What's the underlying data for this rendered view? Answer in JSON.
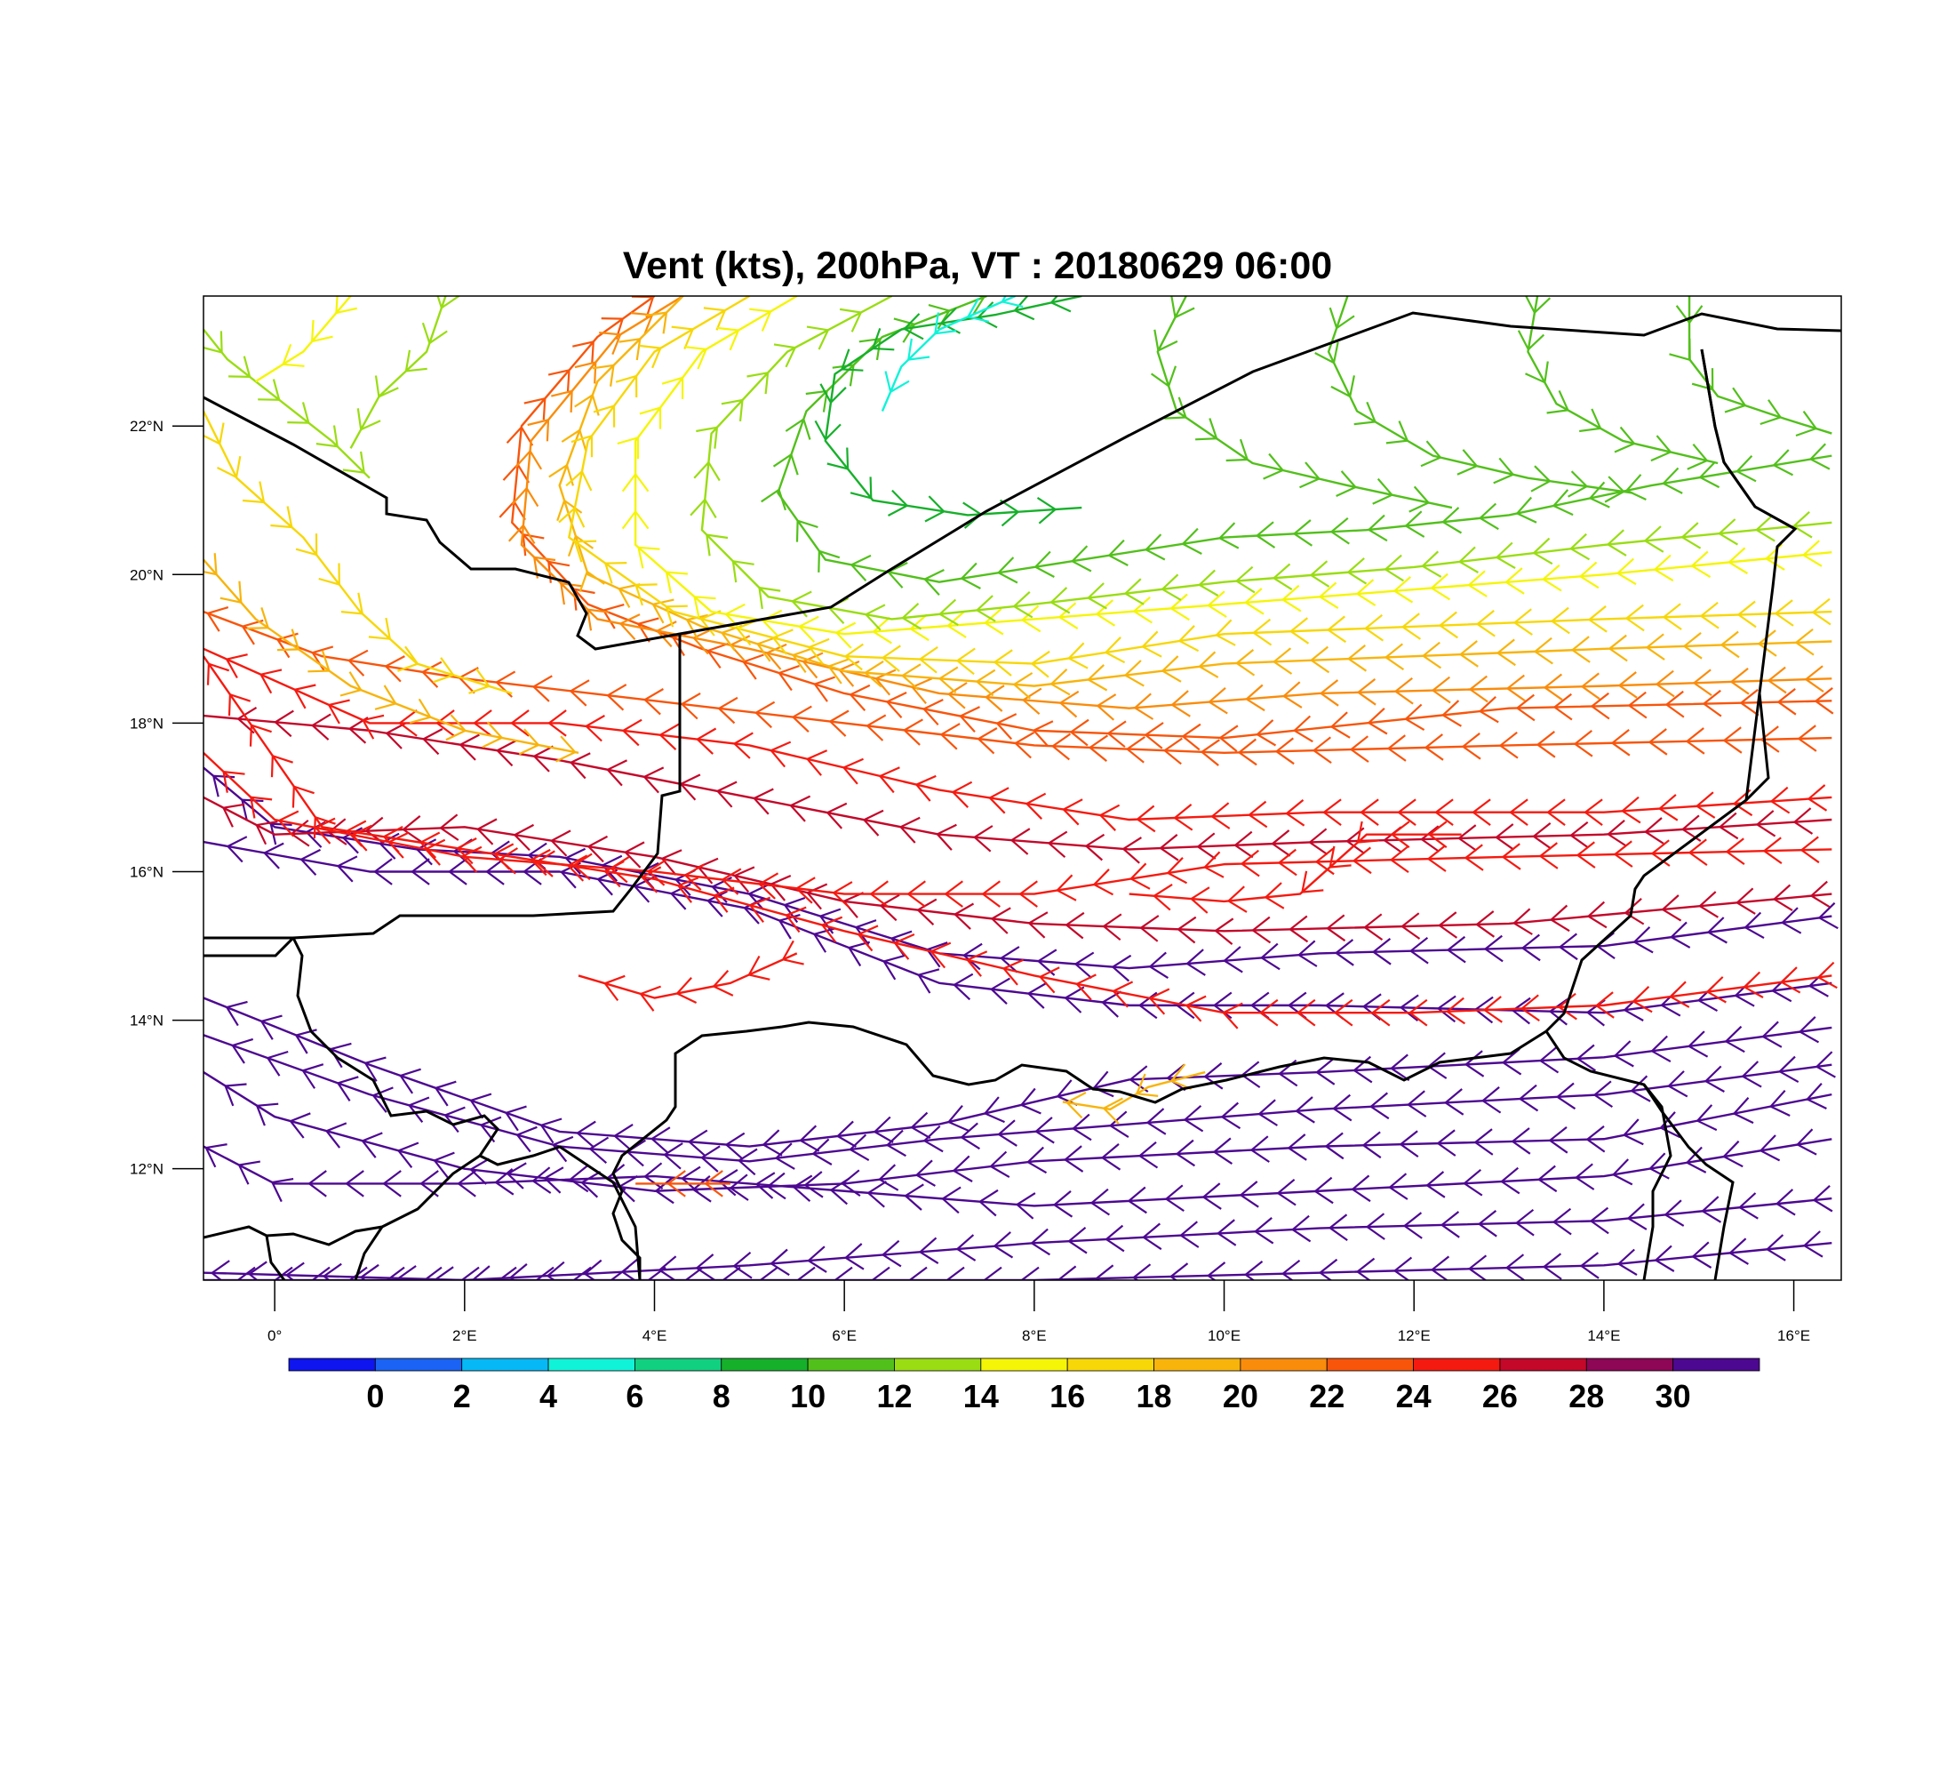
{
  "title": "Vent (kts), 200hPa, VT : 20180629  06:00",
  "map": {
    "lon_range": [
      -0.75,
      16.5
    ],
    "lat_range": [
      10.5,
      23.75
    ],
    "lat_ticks": [
      "22°N",
      "20°N",
      "18°N",
      "16°N",
      "14°N",
      "12°N"
    ],
    "lon_ticks": [
      "0°",
      "2°E",
      "4°E",
      "6°E",
      "8°E",
      "10°E",
      "12°E",
      "14°E",
      "16°E"
    ]
  },
  "colorbar": {
    "labels": [
      "0",
      "2",
      "4",
      "6",
      "8",
      "10",
      "12",
      "14",
      "16",
      "18",
      "20",
      "22",
      "24",
      "26",
      "28",
      "30"
    ],
    "colors": [
      "#0f15ee",
      "#1a63f4",
      "#06b9f6",
      "#10f3d8",
      "#11d080",
      "#16b02b",
      "#52c01b",
      "#99dd12",
      "#f5f507",
      "#f7d707",
      "#f8b40b",
      "#fa8c0b",
      "#f8550b",
      "#f51a10",
      "#c3082a",
      "#8e0656",
      "#4d0891"
    ]
  },
  "streamlines": [
    {
      "points": [
        [
          16.4,
          15.4
        ],
        [
          14,
          15
        ],
        [
          11,
          14.9
        ],
        [
          9,
          14.7
        ],
        [
          7,
          14.9
        ],
        [
          5,
          15.7
        ],
        [
          3,
          16.2
        ],
        [
          1.5,
          16.3
        ],
        [
          0,
          16.6
        ],
        [
          -0.75,
          17.4
        ]
      ],
      "color": "#4d0891"
    },
    {
      "points": [
        [
          16.4,
          14.5
        ],
        [
          14,
          14.1
        ],
        [
          11,
          14.2
        ],
        [
          9,
          14.2
        ],
        [
          7,
          14.5
        ],
        [
          5,
          15.5
        ],
        [
          3,
          16
        ],
        [
          1,
          16
        ],
        [
          -0.75,
          16.4
        ]
      ],
      "color": "#4d0891"
    },
    {
      "points": [
        [
          16.4,
          13.9
        ],
        [
          14,
          13.5
        ],
        [
          11,
          13.3
        ],
        [
          9,
          13.2
        ],
        [
          7,
          12.6
        ],
        [
          5,
          12.3
        ],
        [
          3,
          12.5
        ],
        [
          1,
          13.4
        ],
        [
          -0.75,
          14.3
        ]
      ],
      "color": "#4d0891"
    },
    {
      "points": [
        [
          16.4,
          13.4
        ],
        [
          14,
          13
        ],
        [
          11,
          12.8
        ],
        [
          9,
          12.6
        ],
        [
          7,
          12.4
        ],
        [
          5,
          12.1
        ],
        [
          3,
          12.3
        ],
        [
          1,
          13
        ],
        [
          -0.75,
          13.8
        ]
      ],
      "color": "#4d0891"
    },
    {
      "points": [
        [
          16.4,
          13
        ],
        [
          14,
          12.4
        ],
        [
          11,
          12.3
        ],
        [
          8,
          12.1
        ],
        [
          6,
          11.8
        ],
        [
          4,
          11.7
        ],
        [
          2,
          12
        ],
        [
          0,
          12.7
        ],
        [
          -0.75,
          13.3
        ]
      ],
      "color": "#4d0891"
    },
    {
      "points": [
        [
          16.4,
          12.4
        ],
        [
          14,
          11.9
        ],
        [
          11,
          11.7
        ],
        [
          8,
          11.5
        ],
        [
          6,
          11.7
        ],
        [
          4,
          11.9
        ],
        [
          2,
          11.8
        ],
        [
          0,
          11.8
        ],
        [
          -0.75,
          12.3
        ]
      ],
      "color": "#4d0891"
    },
    {
      "points": [
        [
          16.4,
          11.6
        ],
        [
          14,
          11.3
        ],
        [
          11,
          11.2
        ],
        [
          8,
          11
        ],
        [
          5,
          10.7
        ],
        [
          2,
          10.5
        ],
        [
          -0.75,
          10.6
        ]
      ],
      "color": "#4d0891"
    },
    {
      "points": [
        [
          16.4,
          11
        ],
        [
          14,
          10.7
        ],
        [
          11,
          10.6
        ],
        [
          8,
          10.5
        ],
        [
          5,
          10.5
        ],
        [
          2,
          10.5
        ],
        [
          -0.75,
          10.5
        ]
      ],
      "color": "#4d0891"
    },
    {
      "points": [
        [
          16.4,
          16.7
        ],
        [
          14,
          16.5
        ],
        [
          11,
          16.4
        ],
        [
          9,
          16.3
        ],
        [
          7,
          16.5
        ],
        [
          5,
          17
        ],
        [
          3,
          17.5
        ],
        [
          1,
          17.9
        ],
        [
          -0.75,
          18.1
        ]
      ],
      "color": "#c3082a"
    },
    {
      "points": [
        [
          16.4,
          15.7
        ],
        [
          13,
          15.3
        ],
        [
          10,
          15.2
        ],
        [
          8,
          15.3
        ],
        [
          6,
          15.6
        ],
        [
          4,
          16.2
        ],
        [
          2,
          16.6
        ],
        [
          0,
          16.5
        ],
        [
          -0.75,
          17
        ]
      ],
      "color": "#c3082a"
    },
    {
      "points": [
        [
          16.4,
          16.3
        ],
        [
          13,
          16.2
        ],
        [
          10,
          16.1
        ],
        [
          8,
          15.7
        ],
        [
          6,
          15.7
        ],
        [
          4,
          16
        ],
        [
          2,
          16.2
        ],
        [
          0,
          16.7
        ],
        [
          -0.75,
          17.6
        ]
      ],
      "color": "#f51a10"
    },
    {
      "points": [
        [
          16.4,
          14.6
        ],
        [
          14,
          14.2
        ],
        [
          12,
          14.1
        ],
        [
          10,
          14.1
        ],
        [
          8,
          14.6
        ],
        [
          6,
          15.2
        ],
        [
          4,
          15.9
        ],
        [
          2,
          16.3
        ],
        [
          0.5,
          16.6
        ],
        [
          -0.75,
          18.9
        ]
      ],
      "color": "#f51a10"
    },
    {
      "points": [
        [
          16.4,
          17
        ],
        [
          14,
          16.8
        ],
        [
          11,
          16.8
        ],
        [
          9,
          16.7
        ],
        [
          7,
          17.1
        ],
        [
          5,
          17.7
        ],
        [
          3,
          18
        ],
        [
          1,
          18
        ],
        [
          -0.75,
          19
        ]
      ],
      "color": "#f51a10"
    },
    {
      "points": [
        [
          16.4,
          17.8
        ],
        [
          13,
          17.7
        ],
        [
          10,
          17.6
        ],
        [
          8,
          17.7
        ],
        [
          6,
          18
        ],
        [
          4,
          18.3
        ],
        [
          2,
          18.6
        ],
        [
          0.5,
          18.9
        ],
        [
          -0.75,
          19.5
        ]
      ],
      "color": "#f8550b"
    },
    {
      "points": [
        [
          16.4,
          18.3
        ],
        [
          13,
          18.2
        ],
        [
          10,
          17.8
        ],
        [
          8,
          17.9
        ],
        [
          6,
          18.4
        ],
        [
          4.5,
          19
        ],
        [
          3.3,
          19.6
        ],
        [
          2.5,
          20.7
        ],
        [
          2.6,
          22
        ],
        [
          3.4,
          23.2
        ],
        [
          4,
          23.75
        ]
      ],
      "color": "#f8550b"
    },
    {
      "points": [
        [
          16.4,
          18.6
        ],
        [
          14,
          18.5
        ],
        [
          11,
          18.4
        ],
        [
          9,
          18.2
        ],
        [
          7,
          18.4
        ],
        [
          5,
          19
        ],
        [
          3.4,
          19.4
        ],
        [
          2.6,
          20.4
        ],
        [
          2.7,
          21.8
        ],
        [
          3.6,
          23.2
        ],
        [
          4.3,
          23.75
        ]
      ],
      "color": "#fa8c0b"
    },
    {
      "points": [
        [
          16.4,
          19.1
        ],
        [
          14,
          19
        ],
        [
          12,
          18.9
        ],
        [
          10,
          18.8
        ],
        [
          8,
          18.5
        ],
        [
          6,
          18.7
        ],
        [
          4.5,
          19.3
        ],
        [
          3.3,
          20
        ],
        [
          3,
          21.2
        ],
        [
          3.4,
          22.6
        ],
        [
          4.3,
          23.75
        ]
      ],
      "color": "#f8b40b"
    },
    {
      "points": [
        [
          16.4,
          19.5
        ],
        [
          14,
          19.4
        ],
        [
          12,
          19.3
        ],
        [
          10,
          19.2
        ],
        [
          8,
          18.8
        ],
        [
          6,
          18.9
        ],
        [
          4.2,
          19.5
        ],
        [
          3.1,
          20.5
        ],
        [
          3.3,
          21.8
        ],
        [
          4,
          23
        ],
        [
          5,
          23.75
        ]
      ],
      "color": "#f7d707"
    },
    {
      "points": [
        [
          16.4,
          20.3
        ],
        [
          14,
          20
        ],
        [
          12,
          19.8
        ],
        [
          10,
          19.6
        ],
        [
          8,
          19.4
        ],
        [
          6,
          19.2
        ],
        [
          4.6,
          19.5
        ],
        [
          3.8,
          20.4
        ],
        [
          3.8,
          21.8
        ],
        [
          4.5,
          23
        ],
        [
          5.5,
          23.75
        ]
      ],
      "color": "#f5f507"
    },
    {
      "points": [
        [
          16.4,
          20.7
        ],
        [
          14,
          20.4
        ],
        [
          12,
          20.1
        ],
        [
          10,
          19.9
        ],
        [
          8,
          19.6
        ],
        [
          6.5,
          19.4
        ],
        [
          5.2,
          19.7
        ],
        [
          4.5,
          20.6
        ],
        [
          4.6,
          21.9
        ],
        [
          5.4,
          23
        ],
        [
          6.5,
          23.75
        ]
      ],
      "color": "#99dd12"
    },
    {
      "points": [
        [
          16.4,
          21.6
        ],
        [
          14.5,
          21.2
        ],
        [
          13,
          20.8
        ],
        [
          11.5,
          20.6
        ],
        [
          10,
          20.5
        ],
        [
          8.5,
          20.2
        ],
        [
          7,
          19.9
        ],
        [
          5.8,
          20.2
        ],
        [
          5.3,
          21.1
        ],
        [
          5.6,
          22.2
        ],
        [
          6.4,
          23.2
        ],
        [
          7.5,
          23.75
        ]
      ],
      "color": "#52c01b"
    },
    {
      "points": [
        [
          8.5,
          23.75
        ],
        [
          7.6,
          23.5
        ],
        [
          6.6,
          23.3
        ],
        [
          5.9,
          22.7
        ],
        [
          5.8,
          21.8
        ],
        [
          6.3,
          21
        ],
        [
          7.3,
          20.8
        ],
        [
          8.5,
          20.9
        ]
      ],
      "color": "#16b02b"
    },
    {
      "points": [
        [
          7.8,
          23.75
        ],
        [
          7,
          23.3
        ],
        [
          6.6,
          22.8
        ],
        [
          6.4,
          22.2
        ]
      ],
      "color": "#10f3d8"
    },
    {
      "points": [
        [
          9.6,
          23.75
        ],
        [
          9.3,
          23
        ],
        [
          9.5,
          22.2
        ],
        [
          10.3,
          21.5
        ],
        [
          11.3,
          21.2
        ],
        [
          12.4,
          20.9
        ]
      ],
      "color": "#52c01b"
    },
    {
      "points": [
        [
          11.3,
          23.75
        ],
        [
          11.1,
          23
        ],
        [
          11.4,
          22.2
        ],
        [
          12.2,
          21.6
        ],
        [
          13.2,
          21.3
        ],
        [
          14.3,
          21.1
        ]
      ],
      "color": "#52c01b"
    },
    {
      "points": [
        [
          13.3,
          23.75
        ],
        [
          13.2,
          23
        ],
        [
          13.5,
          22.3
        ],
        [
          14.2,
          21.8
        ],
        [
          15.2,
          21.5
        ]
      ],
      "color": "#52c01b"
    },
    {
      "points": [
        [
          14.9,
          23.75
        ],
        [
          14.9,
          22.9
        ],
        [
          15.2,
          22.4
        ],
        [
          15.9,
          22.1
        ],
        [
          16.4,
          21.9
        ]
      ],
      "color": "#52c01b"
    },
    {
      "points": [
        [
          -0.75,
          22.2
        ],
        [
          -0.4,
          21.3
        ],
        [
          0.3,
          20.5
        ],
        [
          0.9,
          19.5
        ],
        [
          1.5,
          18.8
        ],
        [
          2.5,
          18.4
        ]
      ],
      "color": "#f7d707"
    },
    {
      "points": [
        [
          -0.75,
          20.2
        ],
        [
          -0.2,
          19.4
        ],
        [
          0.8,
          18.5
        ],
        [
          2,
          17.9
        ],
        [
          3.2,
          17.6
        ]
      ],
      "color": "#f8b40b"
    },
    {
      "points": [
        [
          -0.75,
          23.3
        ],
        [
          -0.5,
          22.9
        ],
        [
          0,
          22.4
        ],
        [
          0.6,
          21.8
        ],
        [
          1,
          21.3
        ]
      ],
      "color": "#99dd12"
    },
    {
      "points": [
        [
          1.8,
          23.75
        ],
        [
          1.6,
          23
        ],
        [
          1.1,
          22.4
        ],
        [
          0.8,
          21.7
        ]
      ],
      "color": "#99dd12"
    },
    {
      "points": [
        [
          0.8,
          23.75
        ],
        [
          0.3,
          23
        ],
        [
          -0.2,
          22.6
        ]
      ],
      "color": "#f5f507"
    },
    {
      "points": [
        [
          12.5,
          16.5
        ],
        [
          11.5,
          16.5
        ],
        [
          10.8,
          15.7
        ],
        [
          10,
          15.6
        ],
        [
          9,
          15.7
        ]
      ],
      "color": "#f51a10"
    },
    {
      "points": [
        [
          5.5,
          14.9
        ],
        [
          4.8,
          14.5
        ],
        [
          4,
          14.3
        ],
        [
          3.2,
          14.6
        ]
      ],
      "color": "#f51a10"
    },
    {
      "points": [
        [
          4.8,
          11.8
        ],
        [
          4.3,
          11.8
        ],
        [
          3.8,
          11.8
        ]
      ],
      "color": "#f8550b"
    },
    {
      "points": [
        [
          9.8,
          13.3
        ],
        [
          9.2,
          13.1
        ],
        [
          8.8,
          12.8
        ],
        [
          8.3,
          12.9
        ]
      ],
      "color": "#f8b40b"
    }
  ]
}
